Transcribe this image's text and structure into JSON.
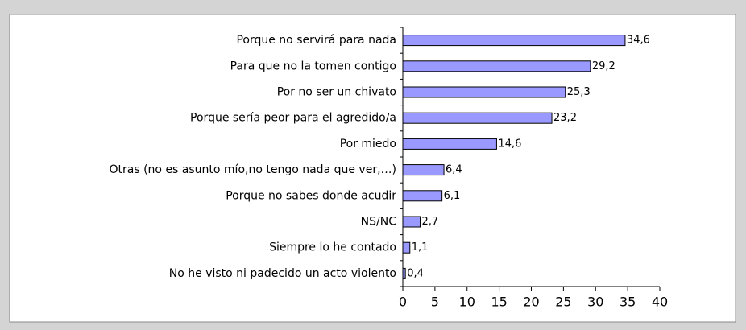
{
  "chart_data": {
    "type": "bar",
    "orientation": "horizontal",
    "categories": [
      "Porque no servirá para nada",
      "Para que no la tomen contigo",
      "Por no ser un chivato",
      "Porque sería peor para el agredido/a",
      "Por miedo",
      "Otras (no es asunto mío,no tengo nada que ver,…)",
      "Porque no sabes donde acudir",
      "NS/NC",
      "Siempre lo he contado",
      "No he visto ni padecido un acto violento"
    ],
    "values": [
      34.6,
      29.2,
      25.3,
      23.2,
      14.6,
      6.4,
      6.1,
      2.7,
      1.1,
      0.4
    ],
    "value_labels": [
      "34,6",
      "29,2",
      "25,3",
      "23,2",
      "14,6",
      "6,4",
      "6,1",
      "2,7",
      "1,1",
      "0,4"
    ],
    "color": "#9999ff",
    "xlim": [
      0,
      40
    ],
    "xticks": [
      0,
      5,
      10,
      15,
      20,
      25,
      30,
      35,
      40
    ]
  }
}
